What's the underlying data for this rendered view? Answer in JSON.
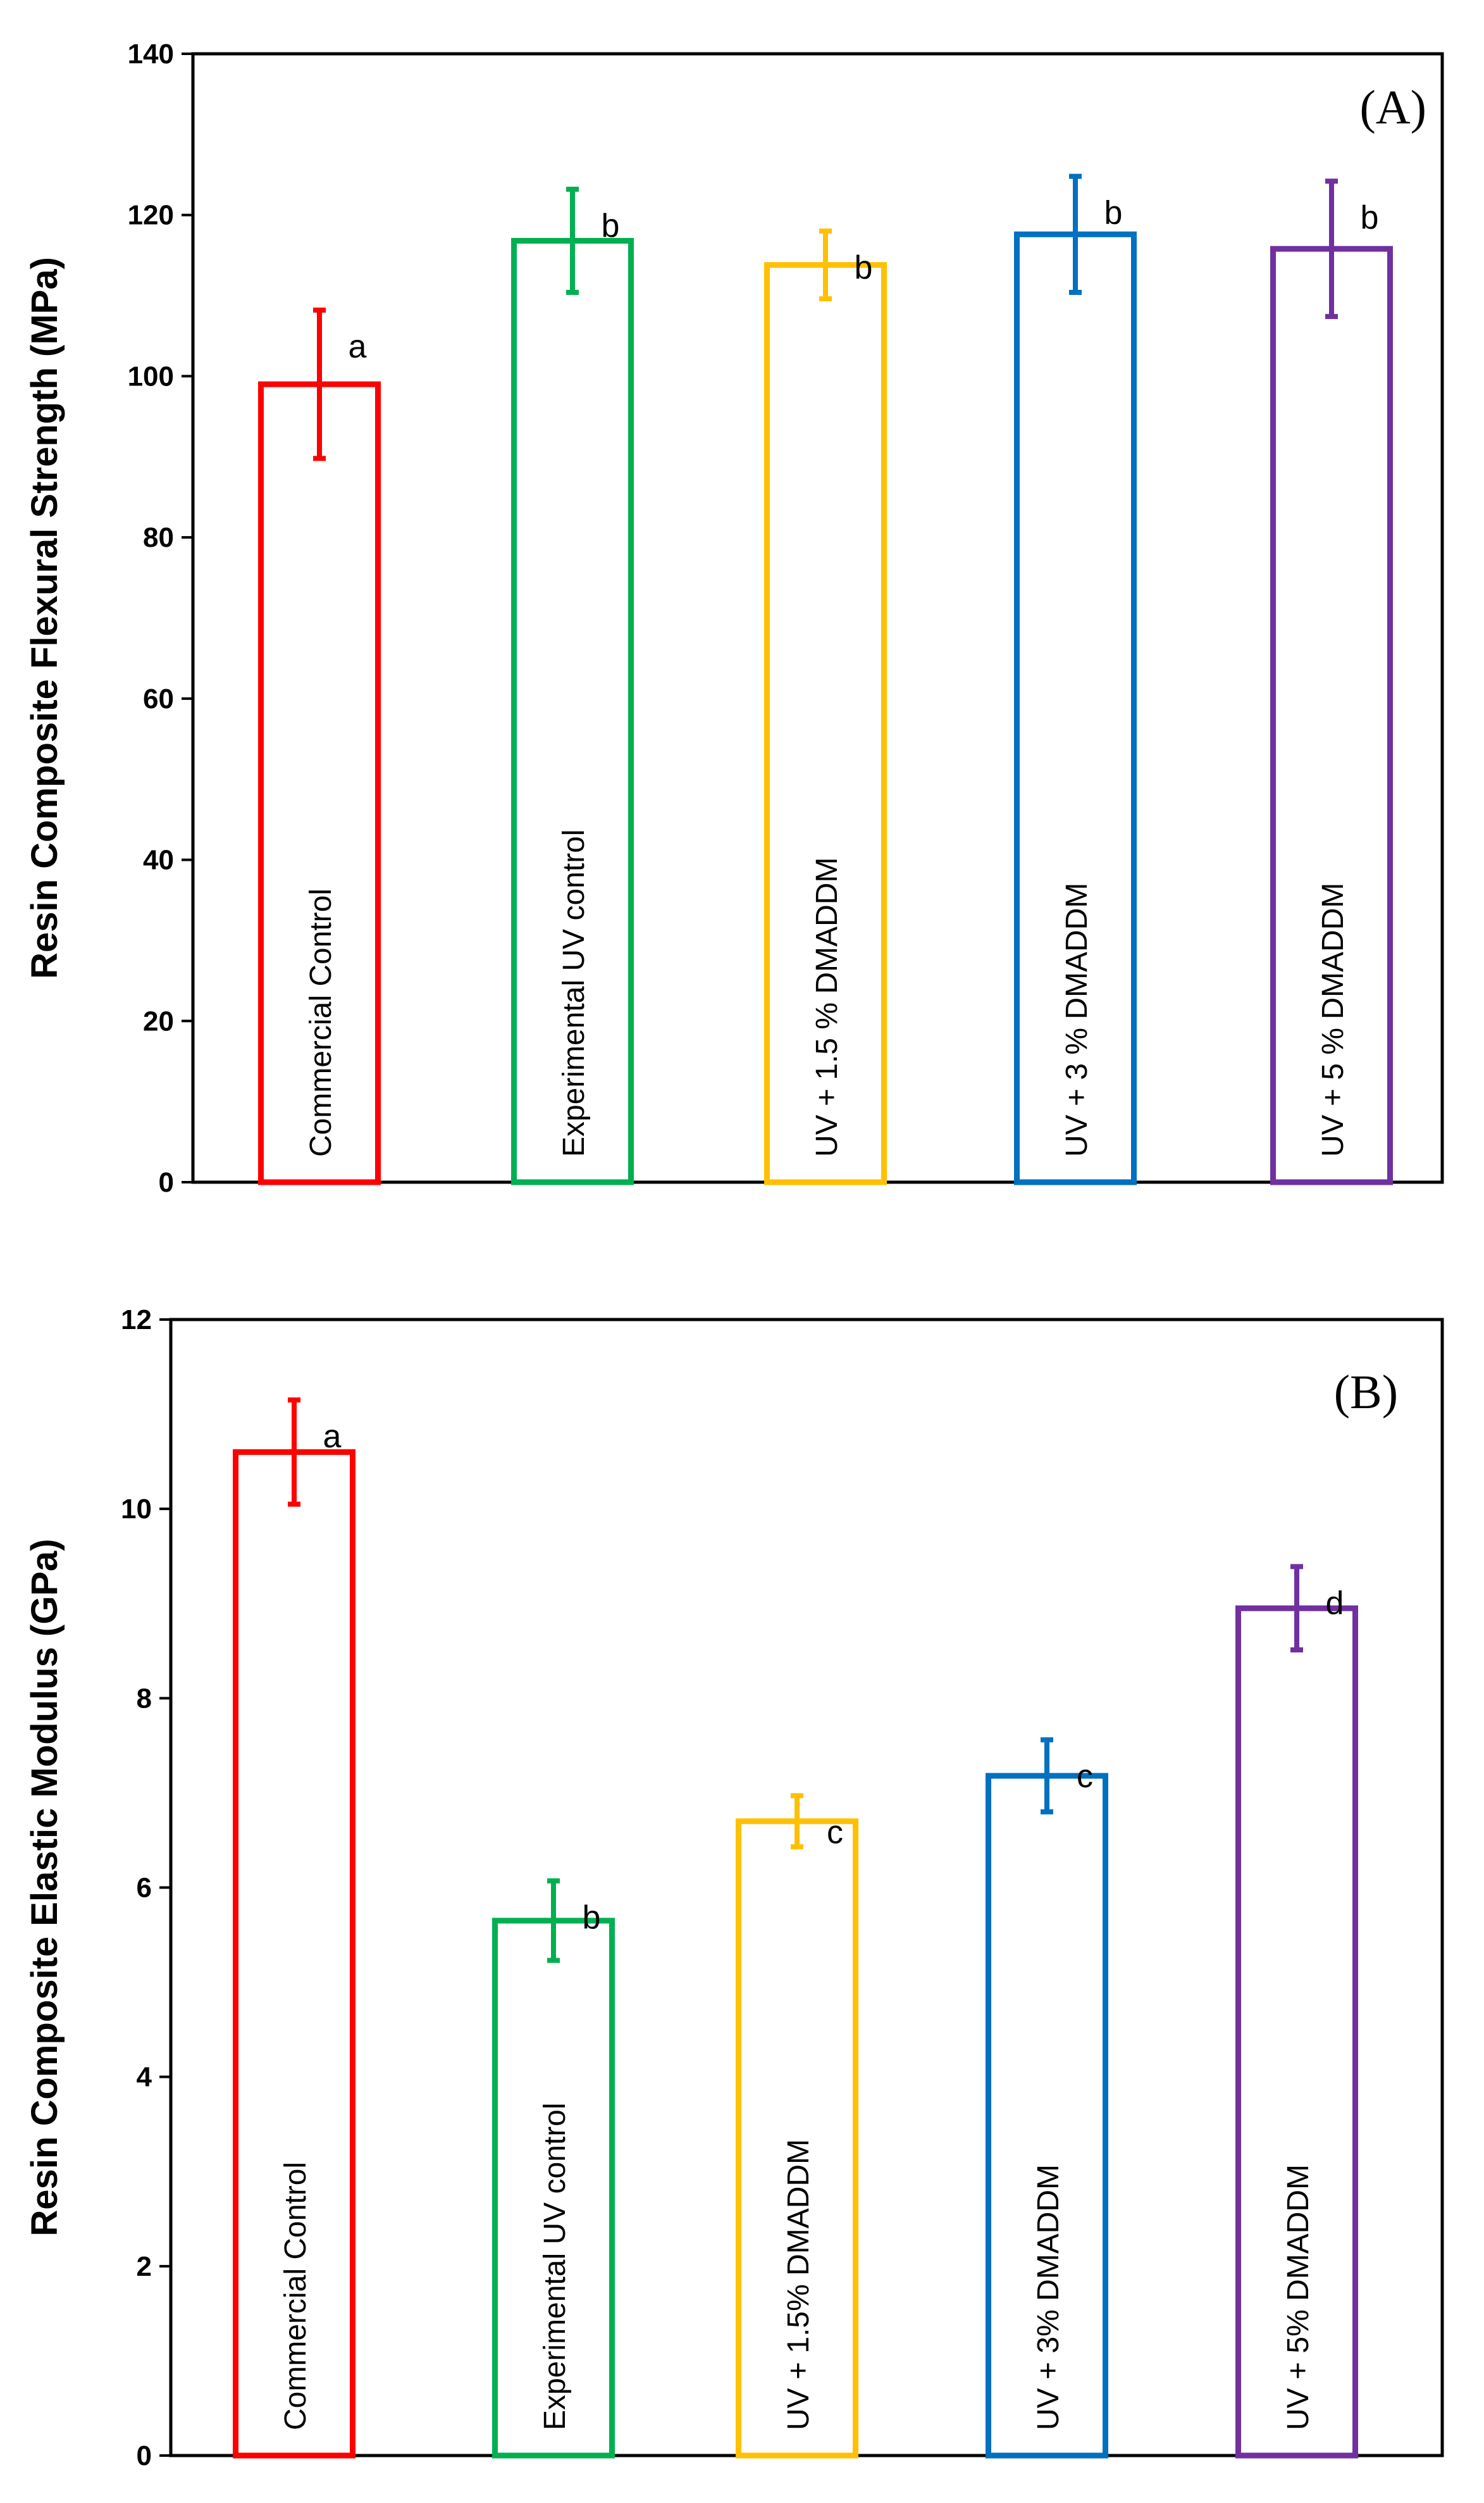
{
  "chart_data": [
    {
      "type": "bar",
      "panel_label": "(A)",
      "title": "",
      "xlabel": "",
      "ylabel": "Resin Composite Flexural Strength (MPa)",
      "ylim": [
        0,
        140
      ],
      "yticks": [
        "0",
        "20",
        "40",
        "60",
        "80",
        "100",
        "120",
        "140"
      ],
      "grid": false,
      "categories": [
        "Commercial Control",
        "Experimental UV control",
        "UV + 1.5 % DMADDM",
        "UV + 3 % DMADDM",
        "UV + 5 % DMADDM"
      ],
      "values": [
        99,
        116.8,
        113.8,
        117.6,
        115.8
      ],
      "errors": [
        9.2,
        6.4,
        4.2,
        7.2,
        8.4
      ],
      "significance": [
        "a",
        "b",
        "b",
        "b",
        "b"
      ],
      "colors": [
        "#ff0000",
        "#00b050",
        "#ffc000",
        "#0070c0",
        "#7030a0"
      ]
    },
    {
      "type": "bar",
      "panel_label": "(B)",
      "title": "",
      "xlabel": "",
      "ylabel": "Resin Composite Elastic Modulus (GPa)",
      "ylim": [
        0,
        12
      ],
      "yticks": [
        "0",
        "2",
        "4",
        "6",
        "8",
        "10",
        "12"
      ],
      "grid": false,
      "categories": [
        "Commercial Control",
        "Experimental UV control",
        "UV + 1.5% DMADDM",
        "UV + 3% DMADDM",
        "UV + 5% DMADDM"
      ],
      "values": [
        10.6,
        5.65,
        6.7,
        7.18,
        8.95
      ],
      "errors": [
        0.55,
        0.42,
        0.27,
        0.38,
        0.44
      ],
      "significance": [
        "a",
        "b",
        "c",
        "c",
        "d"
      ],
      "colors": [
        "#ff0000",
        "#00b050",
        "#ffc000",
        "#0070c0",
        "#7030a0"
      ]
    }
  ]
}
